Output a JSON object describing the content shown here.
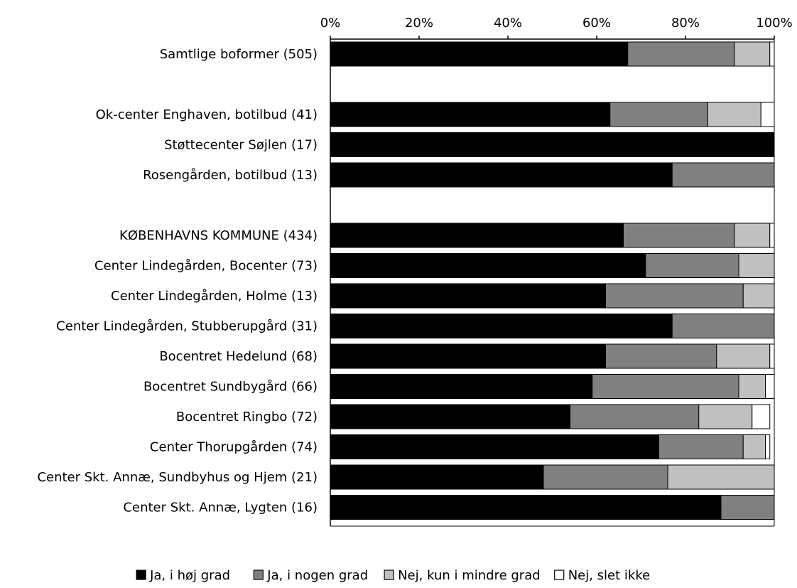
{
  "chart_data": {
    "type": "bar",
    "orientation": "horizontal",
    "stacked": "percent",
    "title": "",
    "xlabel": "",
    "ylabel": "",
    "xlim": [
      0,
      100
    ],
    "x_ticks": [
      "0%",
      "20%",
      "40%",
      "60%",
      "80%",
      "100%"
    ],
    "x_axis_position": "top",
    "grid": false,
    "legend_position": "bottom",
    "categories": [
      "Samtlige boformer (505)",
      "",
      "Ok-center Enghaven, botilbud (41)",
      "Støttecenter Søjlen (17)",
      "Rosengården, botilbud (13)",
      "",
      "KØBENHAVNS KOMMUNE (434)",
      "Center Lindegården, Bocenter (73)",
      "Center Lindegården, Holme (13)",
      "Center Lindegården, Stubberupgård (31)",
      "Bocentret Hedelund (68)",
      "Bocentret Sundbygård (66)",
      "Bocentret Ringbo (72)",
      "Center Thorupgården (74)",
      "Center Skt. Annæ, Sundbyhus og Hjem (21)",
      "Center Skt. Annæ, Lygten (16)"
    ],
    "series": [
      {
        "name": "Ja, i høj grad",
        "color": "#000000",
        "values": [
          67,
          null,
          63,
          100,
          77,
          null,
          66,
          71,
          62,
          77,
          62,
          59,
          54,
          74,
          48,
          88
        ]
      },
      {
        "name": "Ja, i nogen grad",
        "color": "#808080",
        "values": [
          24,
          null,
          22,
          0,
          23,
          null,
          25,
          21,
          31,
          23,
          25,
          33,
          29,
          19,
          28,
          12
        ]
      },
      {
        "name": "Nej, kun i mindre grad",
        "color": "#c0c0c0",
        "values": [
          8,
          null,
          12,
          0,
          0,
          null,
          8,
          8,
          7,
          0,
          12,
          6,
          12,
          5,
          24,
          0
        ]
      },
      {
        "name": "Nej, slet ikke",
        "color": "#ffffff",
        "values": [
          1,
          null,
          3,
          0,
          0,
          null,
          1,
          0,
          0,
          0,
          1,
          2,
          4,
          1,
          0,
          0
        ]
      }
    ]
  }
}
